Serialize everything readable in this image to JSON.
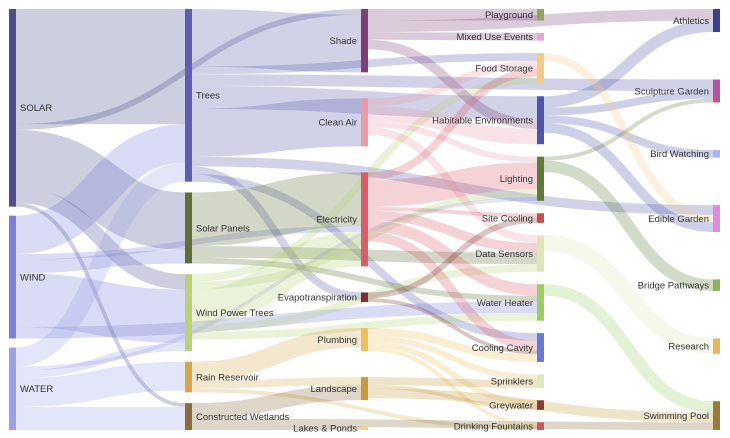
{
  "nodes": [
    {
      "id": "solar",
      "label": "SOLAR",
      "color": "#4b4f8c",
      "col": 0,
      "label_side": "right"
    },
    {
      "id": "wind",
      "label": "WIND",
      "color": "#7b7fd6",
      "col": 0,
      "label_side": "right"
    },
    {
      "id": "water",
      "label": "WATER",
      "color": "#9aa0e6",
      "col": 0,
      "label_side": "right"
    },
    {
      "id": "trees",
      "label": "Trees",
      "color": "#5b5fae",
      "col": 1,
      "label_side": "right"
    },
    {
      "id": "solar_panels",
      "label": "Solar Panels",
      "color": "#5d6f3a",
      "col": 1,
      "label_side": "right"
    },
    {
      "id": "wind_power_trees",
      "label": "Wind Power Trees",
      "color": "#b8d27a",
      "col": 1,
      "label_side": "right"
    },
    {
      "id": "rain_reservoir",
      "label": "Rain Reservoir",
      "color": "#d4a84a",
      "col": 1,
      "label_side": "right"
    },
    {
      "id": "constructed_wetlands",
      "label": "Constructed Wetlands",
      "color": "#8a6d3b",
      "col": 1,
      "label_side": "right"
    },
    {
      "id": "shade",
      "label": "Shade",
      "color": "#7b3f7a",
      "col": 2,
      "label_side": "left"
    },
    {
      "id": "clean_air",
      "label": "Clean Air",
      "color": "#e99aa6",
      "col": 2,
      "label_side": "left"
    },
    {
      "id": "electricity",
      "label": "Electricity",
      "color": "#d65f6b",
      "col": 2,
      "label_side": "left"
    },
    {
      "id": "evapotranspiration",
      "label": "Evapotranspiration",
      "color": "#7a2f2f",
      "col": 2,
      "label_side": "left"
    },
    {
      "id": "plumbing",
      "label": "Plumbing",
      "color": "#e8c15a",
      "col": 2,
      "label_side": "left"
    },
    {
      "id": "landscape",
      "label": "Landscape",
      "color": "#c79a3e",
      "col": 2,
      "label_side": "left"
    },
    {
      "id": "lakes_ponds",
      "label": "Lakes & Ponds",
      "color": "#f0d28c",
      "col": 2,
      "label_side": "left"
    },
    {
      "id": "playground",
      "label": "Playground",
      "color": "#8da85a",
      "col": 3,
      "label_side": "left"
    },
    {
      "id": "mixed_use_events",
      "label": "Mixed Use Events",
      "color": "#e4a8df",
      "col": 3,
      "label_side": "left"
    },
    {
      "id": "food_storage",
      "label": "Food Storage",
      "color": "#f3c98a",
      "col": 3,
      "label_side": "left"
    },
    {
      "id": "habitable_environments",
      "label": "Habitable Environments",
      "color": "#4b57a8",
      "col": 3,
      "label_side": "left"
    },
    {
      "id": "lighting",
      "label": "Lighting",
      "color": "#5f7a3a",
      "col": 3,
      "label_side": "left"
    },
    {
      "id": "site_cooling",
      "label": "Site Cooling",
      "color": "#c44f4f",
      "col": 3,
      "label_side": "left"
    },
    {
      "id": "data_sensors",
      "label": "Data Sensors",
      "color": "#dce6b8",
      "col": 3,
      "label_side": "left"
    },
    {
      "id": "water_heater",
      "label": "Water Heater",
      "color": "#9ccc65",
      "col": 3,
      "label_side": "left"
    },
    {
      "id": "cooling_cavity",
      "label": "Cooling Cavity",
      "color": "#6b78d8",
      "col": 3,
      "label_side": "left"
    },
    {
      "id": "sprinklers",
      "label": "Sprinklers",
      "color": "#dfe7c0",
      "col": 3,
      "label_side": "left"
    },
    {
      "id": "greywater",
      "label": "Greywater",
      "color": "#8b3a3a",
      "col": 3,
      "label_side": "left"
    },
    {
      "id": "drinking_fountains",
      "label": "Drinking Fountains",
      "color": "#c9575e",
      "col": 3,
      "label_side": "left"
    },
    {
      "id": "athletics",
      "label": "Athletics",
      "color": "#3b3f8a",
      "col": 4,
      "label_side": "left"
    },
    {
      "id": "sculpture_garden",
      "label": "Sculpture Garden",
      "color": "#b8549f",
      "col": 4,
      "label_side": "left"
    },
    {
      "id": "bird_watching",
      "label": "Bird Watching",
      "color": "#aab4ef",
      "col": 4,
      "label_side": "left"
    },
    {
      "id": "edible_garden",
      "label": "Edible Garden",
      "color": "#e08be0",
      "col": 4,
      "label_side": "left"
    },
    {
      "id": "bridge_pathways",
      "label": "Bridge Pathways",
      "color": "#8db05a",
      "col": 4,
      "label_side": "left"
    },
    {
      "id": "research",
      "label": "Research",
      "color": "#e9b45a",
      "col": 4,
      "label_side": "left"
    },
    {
      "id": "swimming_pool",
      "label": "Swimming Pool",
      "color": "#9a7a3a",
      "col": 4,
      "label_side": "left"
    }
  ],
  "links": [
    {
      "source": "solar",
      "target": "trees",
      "value": 60
    },
    {
      "source": "solar",
      "target": "shade",
      "value": 3
    },
    {
      "source": "solar",
      "target": "solar_panels",
      "value": 30
    },
    {
      "source": "solar",
      "target": "wind_power_trees",
      "value": 8
    },
    {
      "source": "solar",
      "target": "constructed_wetlands",
      "value": 2
    },
    {
      "source": "wind",
      "target": "trees",
      "value": 20
    },
    {
      "source": "wind",
      "target": "solar_panels",
      "value": 7
    },
    {
      "source": "wind",
      "target": "wind_power_trees",
      "value": 28
    },
    {
      "source": "wind",
      "target": "electricity",
      "value": 3
    },
    {
      "source": "wind",
      "target": "water_heater",
      "value": 6
    },
    {
      "source": "water",
      "target": "trees",
      "value": 10
    },
    {
      "source": "water",
      "target": "wind_power_trees",
      "value": 4
    },
    {
      "source": "water",
      "target": "rain_reservoir",
      "value": 15
    },
    {
      "source": "water",
      "target": "constructed_wetlands",
      "value": 12
    },
    {
      "source": "water",
      "target": "lighting",
      "value": 2
    },
    {
      "source": "trees",
      "target": "shade",
      "value": 30
    },
    {
      "source": "trees",
      "target": "clean_air",
      "value": 25
    },
    {
      "source": "trees",
      "target": "evapotranspiration",
      "value": 4
    },
    {
      "source": "trees",
      "target": "habitable_environments",
      "value": 12
    },
    {
      "source": "trees",
      "target": "sculpture_garden",
      "value": 6
    },
    {
      "source": "trees",
      "target": "edible_garden",
      "value": 5
    },
    {
      "source": "trees",
      "target": "food_storage",
      "value": 4
    },
    {
      "source": "trees",
      "target": "cooling_cavity",
      "value": 4
    },
    {
      "source": "solar_panels",
      "target": "electricity",
      "value": 28
    },
    {
      "source": "solar_panels",
      "target": "data_sensors",
      "value": 6
    },
    {
      "source": "solar_panels",
      "target": "water_heater",
      "value": 3
    },
    {
      "source": "wind_power_trees",
      "target": "electricity",
      "value": 18
    },
    {
      "source": "wind_power_trees",
      "target": "food_storage",
      "value": 4
    },
    {
      "source": "wind_power_trees",
      "target": "lighting",
      "value": 4
    },
    {
      "source": "wind_power_trees",
      "target": "data_sensors",
      "value": 4
    },
    {
      "source": "wind_power_trees",
      "target": "water_heater",
      "value": 4
    },
    {
      "source": "rain_reservoir",
      "target": "plumbing",
      "value": 10
    },
    {
      "source": "rain_reservoir",
      "target": "landscape",
      "value": 4
    },
    {
      "source": "rain_reservoir",
      "target": "drinking_fountains",
      "value": 2
    },
    {
      "source": "constructed_wetlands",
      "target": "landscape",
      "value": 8
    },
    {
      "source": "constructed_wetlands",
      "target": "lakes_ponds",
      "value": 2
    },
    {
      "source": "constructed_wetlands",
      "target": "swimming_pool",
      "value": 4
    },
    {
      "source": "shade",
      "target": "playground",
      "value": 6
    },
    {
      "source": "shade",
      "target": "mixed_use_events",
      "value": 4
    },
    {
      "source": "shade",
      "target": "athletics",
      "value": 6
    },
    {
      "source": "shade",
      "target": "habitable_environments",
      "value": 5
    },
    {
      "source": "clean_air",
      "target": "food_storage",
      "value": 4
    },
    {
      "source": "clean_air",
      "target": "habitable_environments",
      "value": 8
    },
    {
      "source": "clean_air",
      "target": "lighting",
      "value": 3
    },
    {
      "source": "clean_air",
      "target": "data_sensors",
      "value": 4
    },
    {
      "source": "electricity",
      "target": "lighting",
      "value": 14
    },
    {
      "source": "electricity",
      "target": "data_sensors",
      "value": 5
    },
    {
      "source": "electricity",
      "target": "water_heater",
      "value": 6
    },
    {
      "source": "electricity",
      "target": "cooling_cavity",
      "value": 5
    },
    {
      "source": "electricity",
      "target": "food_storage",
      "value": 4
    },
    {
      "source": "electricity",
      "target": "site_cooling",
      "value": 2
    },
    {
      "source": "evapotranspiration",
      "target": "site_cooling",
      "value": 3
    },
    {
      "source": "evapotranspiration",
      "target": "cooling_cavity",
      "value": 2
    },
    {
      "source": "plumbing",
      "target": "cooling_cavity",
      "value": 4
    },
    {
      "source": "plumbing",
      "target": "greywater",
      "value": 3
    },
    {
      "source": "plumbing",
      "target": "sprinklers",
      "value": 3
    },
    {
      "source": "plumbing",
      "target": "drinking_fountains",
      "value": 2
    },
    {
      "source": "landscape",
      "target": "sprinklers",
      "value": 4
    },
    {
      "source": "landscape",
      "target": "swimming_pool",
      "value": 5
    },
    {
      "source": "landscape",
      "target": "greywater",
      "value": 2
    },
    {
      "source": "habitable_environments",
      "target": "athletics",
      "value": 6
    },
    {
      "source": "habitable_environments",
      "target": "bird_watching",
      "value": 4
    },
    {
      "source": "habitable_environments",
      "target": "edible_garden",
      "value": 5
    },
    {
      "source": "habitable_environments",
      "target": "sculpture_garden",
      "value": 4
    },
    {
      "source": "lighting",
      "target": "bridge_pathways",
      "value": 6
    },
    {
      "source": "lighting",
      "target": "sculpture_garden",
      "value": 2
    },
    {
      "source": "food_storage",
      "target": "edible_garden",
      "value": 4
    },
    {
      "source": "data_sensors",
      "target": "research",
      "value": 8
    },
    {
      "source": "water_heater",
      "target": "swimming_pool",
      "value": 6
    }
  ]
}
